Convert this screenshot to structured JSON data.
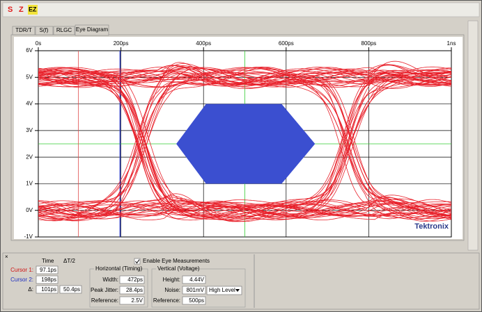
{
  "toolbar": {
    "icons": [
      "S",
      "Z",
      "EZ"
    ]
  },
  "tabs": [
    "TDR/T",
    "S(f)",
    "RLGC",
    "Eye Diagram"
  ],
  "chart_data": {
    "type": "eye",
    "xlim": [
      0,
      1000
    ],
    "xticks": [
      {
        "value": 0,
        "label": "0s"
      },
      {
        "value": 200,
        "label": "200ps"
      },
      {
        "value": 400,
        "label": "400ps"
      },
      {
        "value": 600,
        "label": "600ps"
      },
      {
        "value": 800,
        "label": "800ps"
      },
      {
        "value": 1000,
        "label": "1ns"
      }
    ],
    "ylim": [
      -1,
      6
    ],
    "yticks": [
      {
        "value": -1,
        "label": "-1V"
      },
      {
        "value": 0,
        "label": "0V"
      },
      {
        "value": 1,
        "label": "1V"
      },
      {
        "value": 2,
        "label": "2V"
      },
      {
        "value": 3,
        "label": "3V"
      },
      {
        "value": 4,
        "label": "4V"
      },
      {
        "value": 5,
        "label": "5V"
      },
      {
        "value": 6,
        "label": "6V"
      }
    ],
    "grid": true,
    "trace_color": "#e8202a",
    "mask_color": "#3b4fd0",
    "logo": "Tektronix"
  },
  "panel": {
    "columns": [
      "Time",
      "ΔT/2"
    ],
    "cursor1": {
      "label": "Cursor 1:",
      "time": "97.1ps"
    },
    "cursor2": {
      "label": "Cursor 2:",
      "time": "198ps"
    },
    "delta": {
      "label": "Δ:",
      "time": "101ps",
      "half": "50.4ps"
    },
    "enable": "Enable Eye Measurements",
    "horizontal": {
      "title": "Horizontal (Timing)",
      "rows": [
        [
          "Width:",
          "472ps"
        ],
        [
          "Peak Jitter:",
          "28.4ps"
        ],
        [
          "Reference:",
          "2.5V"
        ]
      ]
    },
    "vertical": {
      "title": "Vertical (Voltage)",
      "rows": [
        [
          "Height:",
          "4.44V"
        ],
        [
          "Noise:",
          "801mV"
        ],
        [
          "Reference:",
          "500ps"
        ]
      ],
      "dropdown": "High Level"
    }
  }
}
